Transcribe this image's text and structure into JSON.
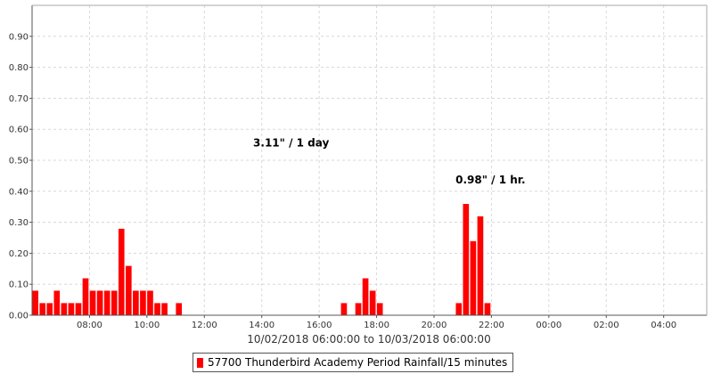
{
  "chart_data": {
    "type": "bar",
    "xlabel": "10/02/2018 06:00:00 to 10/03/2018 06:00:00",
    "ylabel": "",
    "x_range_hours": [
      6.0,
      29.5
    ],
    "ylim": [
      0,
      1.0
    ],
    "y_ticks": [
      0.0,
      0.1,
      0.2,
      0.3,
      0.4,
      0.5,
      0.6,
      0.7,
      0.8,
      0.9
    ],
    "y_tick_labels": [
      "0.00",
      "0.10",
      "0.20",
      "0.30",
      "0.40",
      "0.50",
      "0.60",
      "0.70",
      "0.80",
      "0.90"
    ],
    "x_tick_labels": [
      {
        "hour": 8,
        "label": "08:00"
      },
      {
        "hour": 10,
        "label": "10:00"
      },
      {
        "hour": 12,
        "label": "12:00"
      },
      {
        "hour": 14,
        "label": "14:00"
      },
      {
        "hour": 16,
        "label": "16:00"
      },
      {
        "hour": 18,
        "label": "18:00"
      },
      {
        "hour": 20,
        "label": "20:00"
      },
      {
        "hour": 22,
        "label": "22:00"
      },
      {
        "hour": 24,
        "label": "00:00"
      },
      {
        "hour": 26,
        "label": "02:00"
      },
      {
        "hour": 28,
        "label": "04:00"
      }
    ],
    "grid": true,
    "bar_color": "#ff0000",
    "interval_minutes": 15,
    "series": [
      {
        "name": "57700 Thunderbird Academy Period Rainfall/15 minutes",
        "points": [
          {
            "time": "06:00",
            "value": 0.08
          },
          {
            "time": "06:15",
            "value": 0.04
          },
          {
            "time": "06:30",
            "value": 0.04
          },
          {
            "time": "06:45",
            "value": 0.08
          },
          {
            "time": "07:00",
            "value": 0.04
          },
          {
            "time": "07:15",
            "value": 0.04
          },
          {
            "time": "07:30",
            "value": 0.04
          },
          {
            "time": "07:45",
            "value": 0.12
          },
          {
            "time": "08:00",
            "value": 0.08
          },
          {
            "time": "08:15",
            "value": 0.08
          },
          {
            "time": "08:30",
            "value": 0.08
          },
          {
            "time": "08:45",
            "value": 0.08
          },
          {
            "time": "09:00",
            "value": 0.28
          },
          {
            "time": "09:15",
            "value": 0.16
          },
          {
            "time": "09:30",
            "value": 0.08
          },
          {
            "time": "09:45",
            "value": 0.08
          },
          {
            "time": "10:00",
            "value": 0.08
          },
          {
            "time": "10:15",
            "value": 0.04
          },
          {
            "time": "10:30",
            "value": 0.04
          },
          {
            "time": "11:00",
            "value": 0.04
          },
          {
            "time": "16:45",
            "value": 0.04
          },
          {
            "time": "17:15",
            "value": 0.04
          },
          {
            "time": "17:30",
            "value": 0.12
          },
          {
            "time": "17:45",
            "value": 0.08
          },
          {
            "time": "18:00",
            "value": 0.04
          },
          {
            "time": "20:45",
            "value": 0.04
          },
          {
            "time": "21:00",
            "value": 0.36
          },
          {
            "time": "21:15",
            "value": 0.24
          },
          {
            "time": "21:30",
            "value": 0.32
          },
          {
            "time": "21:45",
            "value": 0.04
          }
        ]
      }
    ],
    "annotations": [
      {
        "text": "3.11\" / 1 day",
        "at_hour": 13.7,
        "at_value": 0.545
      },
      {
        "text": "0.98\" / 1 hr.",
        "at_hour": 20.75,
        "at_value": 0.425
      }
    ]
  }
}
